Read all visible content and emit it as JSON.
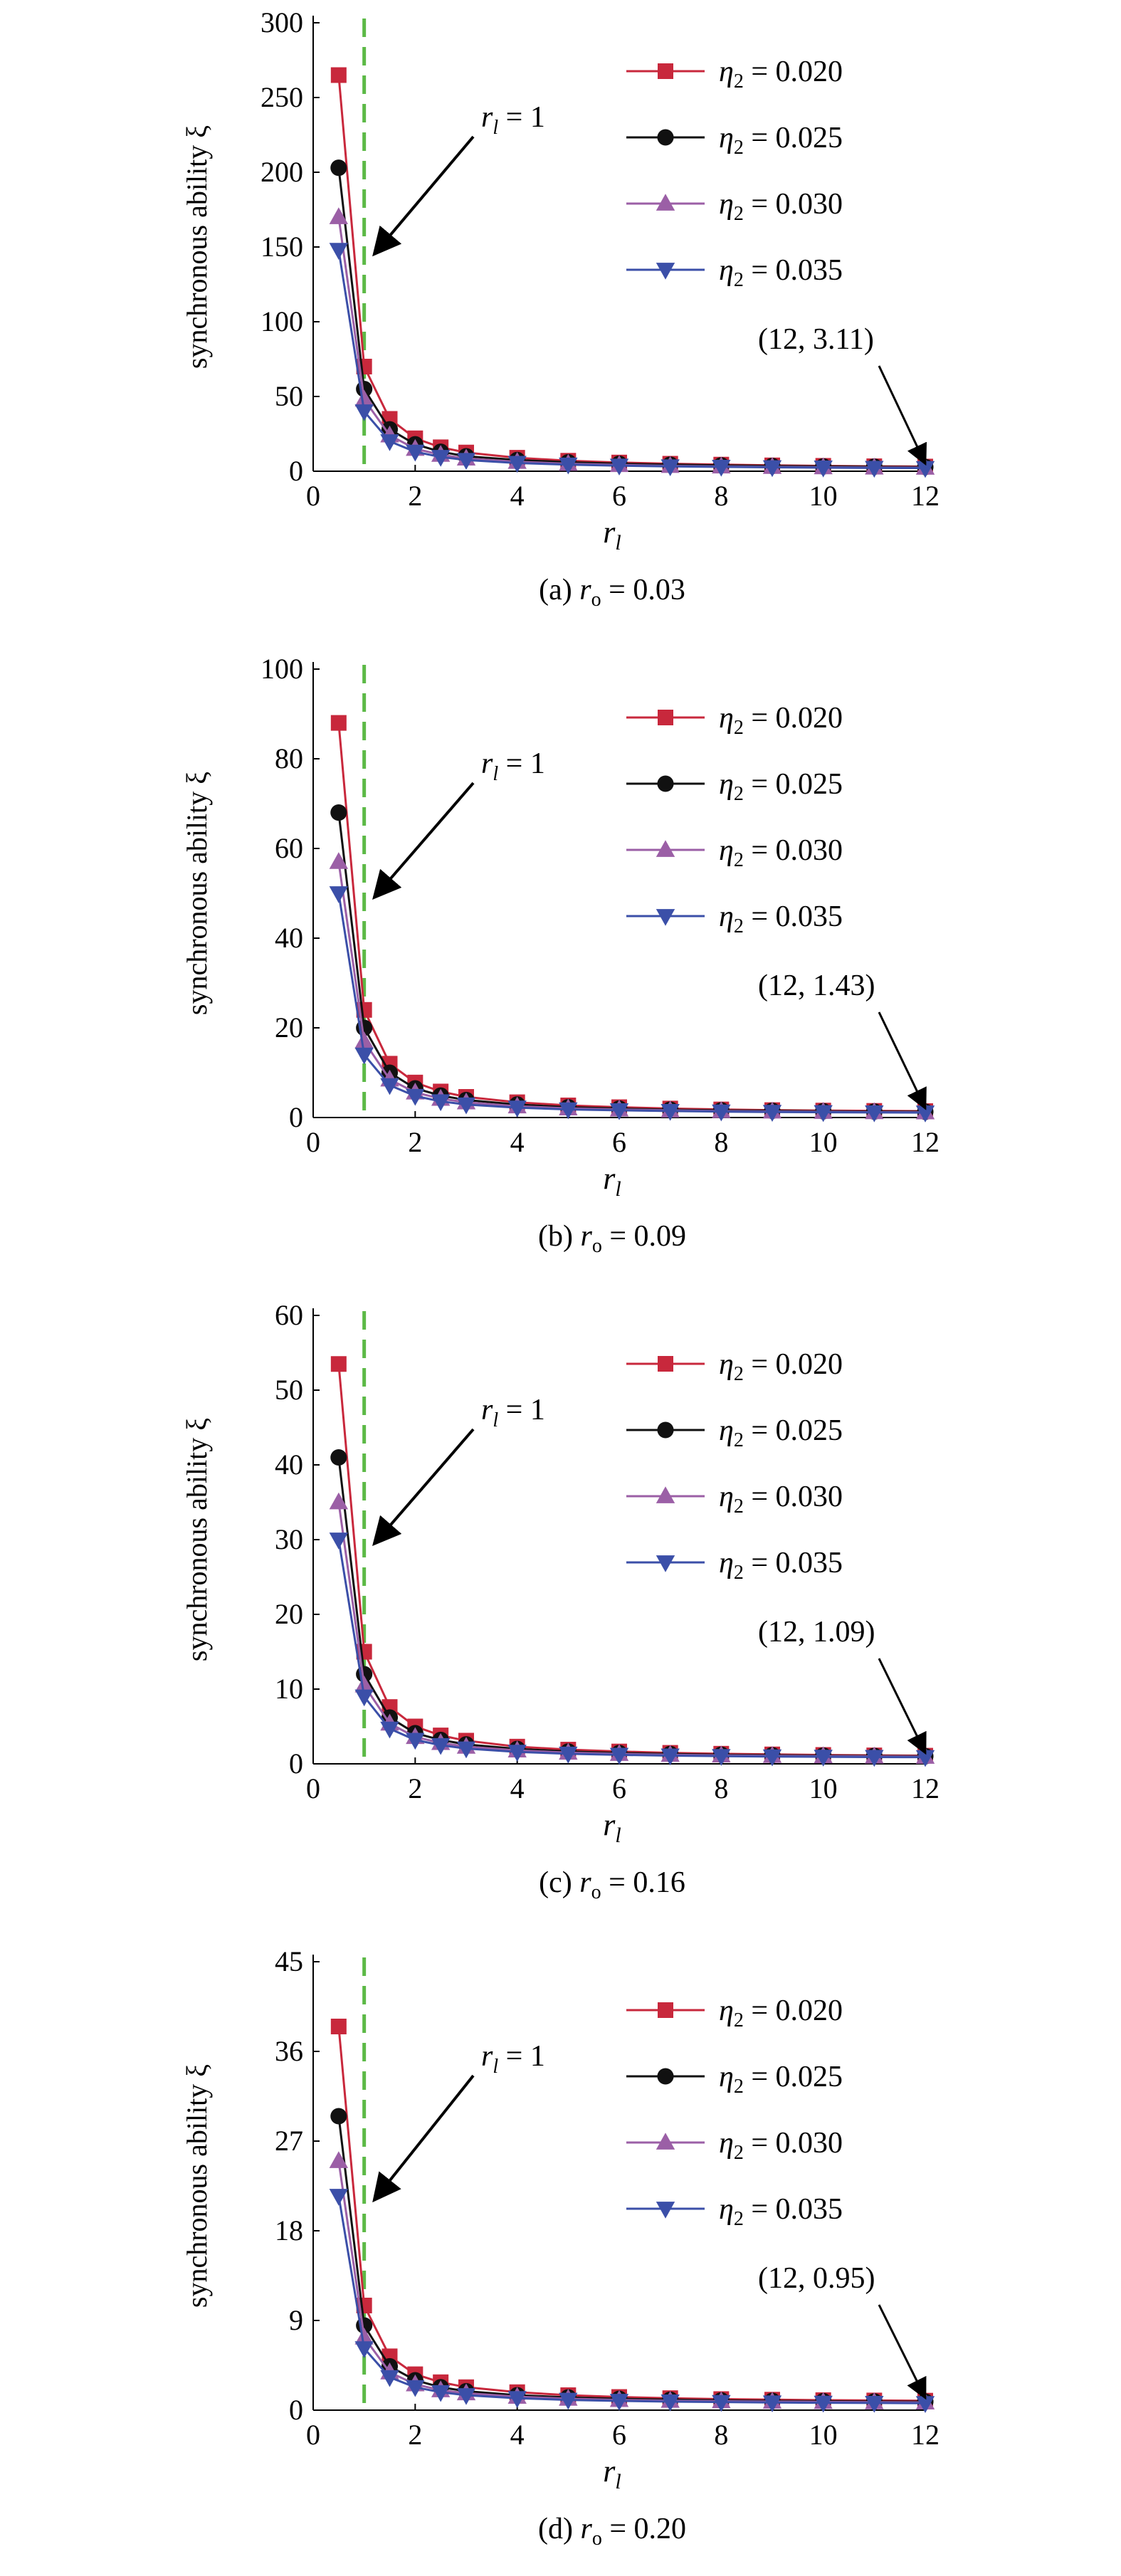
{
  "colors": {
    "series": [
      "#c8283c",
      "#111111",
      "#9b5fa6",
      "#3b4fa8"
    ],
    "refline": "#5cb946",
    "axis": "#000000"
  },
  "legend": {
    "symbol": "η",
    "subscript": "2",
    "equals": "=",
    "markers": [
      "square",
      "circle",
      "triangle-up",
      "triangle-down"
    ]
  },
  "common": {
    "ylabel": "synchronous ability ξ",
    "xlabel_main": "r",
    "xlabel_sub": "l",
    "xlim": [
      0,
      12
    ],
    "xticks": [
      0,
      2,
      4,
      6,
      8,
      10,
      12
    ],
    "refline_x": 1,
    "arrow_label_main": "r",
    "arrow_label_sub": "l",
    "arrow_label_rest": "= 1"
  },
  "chart_data": [
    {
      "type": "line",
      "caption_prefix": "(a)",
      "caption_var": "r",
      "caption_sub": "o",
      "caption_value": "= 0.03",
      "ylim": [
        0,
        300
      ],
      "yticks": [
        0,
        50,
        100,
        150,
        200,
        250,
        300
      ],
      "end_label": "(12, 3.11)",
      "end_point": [
        12,
        3.11
      ],
      "series": [
        {
          "name": "0.020",
          "x": [
            0.5,
            1,
            1.5,
            2,
            2.5,
            3,
            4,
            5,
            6,
            7,
            8,
            9,
            10,
            11,
            12
          ],
          "values": [
            265,
            70,
            35,
            22,
            16,
            12.5,
            9,
            7,
            5.8,
            5,
            4.4,
            3.9,
            3.6,
            3.3,
            3.11
          ]
        },
        {
          "name": "0.025",
          "x": [
            0.5,
            1,
            1.5,
            2,
            2.5,
            3,
            4,
            5,
            6,
            7,
            8,
            9,
            10,
            11,
            12
          ],
          "values": [
            203,
            55,
            28,
            18,
            13,
            10,
            7.5,
            6,
            5,
            4.4,
            3.9,
            3.5,
            3.2,
            3,
            2.8
          ]
        },
        {
          "name": "0.030",
          "x": [
            0.5,
            1,
            1.5,
            2,
            2.5,
            3,
            4,
            5,
            6,
            7,
            8,
            9,
            10,
            11,
            12
          ],
          "values": [
            170,
            48,
            24,
            15,
            11,
            8.5,
            6.3,
            5,
            4.2,
            3.6,
            3.2,
            2.9,
            2.7,
            2.5,
            2.4
          ]
        },
        {
          "name": "0.035",
          "x": [
            0.5,
            1,
            1.5,
            2,
            2.5,
            3,
            4,
            5,
            6,
            7,
            8,
            9,
            10,
            11,
            12
          ],
          "values": [
            148,
            40,
            20,
            13,
            9.5,
            7.5,
            5.5,
            4.4,
            3.7,
            3.2,
            2.9,
            2.6,
            2.4,
            2.2,
            2.1
          ]
        }
      ]
    },
    {
      "type": "line",
      "caption_prefix": "(b)",
      "caption_var": "r",
      "caption_sub": "o",
      "caption_value": "= 0.09",
      "ylim": [
        0,
        100
      ],
      "yticks": [
        0,
        20,
        40,
        60,
        80,
        100
      ],
      "end_label": "(12, 1.43)",
      "end_point": [
        12,
        1.43
      ],
      "series": [
        {
          "name": "0.020",
          "x": [
            0.5,
            1,
            1.5,
            2,
            2.5,
            3,
            4,
            5,
            6,
            7,
            8,
            9,
            10,
            11,
            12
          ],
          "values": [
            88,
            24,
            12,
            7.8,
            5.8,
            4.6,
            3.4,
            2.7,
            2.3,
            2,
            1.8,
            1.65,
            1.55,
            1.48,
            1.43
          ]
        },
        {
          "name": "0.025",
          "x": [
            0.5,
            1,
            1.5,
            2,
            2.5,
            3,
            4,
            5,
            6,
            7,
            8,
            9,
            10,
            11,
            12
          ],
          "values": [
            68,
            20,
            10,
            6.5,
            4.9,
            3.9,
            2.9,
            2.3,
            2,
            1.75,
            1.6,
            1.5,
            1.4,
            1.33,
            1.28
          ]
        },
        {
          "name": "0.030",
          "x": [
            0.5,
            1,
            1.5,
            2,
            2.5,
            3,
            4,
            5,
            6,
            7,
            8,
            9,
            10,
            11,
            12
          ],
          "values": [
            57,
            17,
            8.5,
            5.6,
            4.2,
            3.4,
            2.5,
            2.05,
            1.8,
            1.6,
            1.45,
            1.35,
            1.28,
            1.22,
            1.18
          ]
        },
        {
          "name": "0.035",
          "x": [
            0.5,
            1,
            1.5,
            2,
            2.5,
            3,
            4,
            5,
            6,
            7,
            8,
            9,
            10,
            11,
            12
          ],
          "values": [
            50,
            14,
            7.2,
            4.8,
            3.6,
            2.9,
            2.2,
            1.8,
            1.6,
            1.45,
            1.32,
            1.24,
            1.18,
            1.13,
            1.1
          ]
        }
      ]
    },
    {
      "type": "line",
      "caption_prefix": "(c)",
      "caption_var": "r",
      "caption_sub": "o",
      "caption_value": "= 0.16",
      "ylim": [
        0,
        60
      ],
      "yticks": [
        0,
        10,
        20,
        30,
        40,
        50,
        60
      ],
      "end_label": "(12, 1.09)",
      "end_point": [
        12,
        1.09
      ],
      "series": [
        {
          "name": "0.020",
          "x": [
            0.5,
            1,
            1.5,
            2,
            2.5,
            3,
            4,
            5,
            6,
            7,
            8,
            9,
            10,
            11,
            12
          ],
          "values": [
            53.5,
            15,
            7.6,
            5,
            3.8,
            3.1,
            2.3,
            1.9,
            1.65,
            1.47,
            1.35,
            1.26,
            1.19,
            1.13,
            1.09
          ]
        },
        {
          "name": "0.025",
          "x": [
            0.5,
            1,
            1.5,
            2,
            2.5,
            3,
            4,
            5,
            6,
            7,
            8,
            9,
            10,
            11,
            12
          ],
          "values": [
            41,
            12,
            6.2,
            4.1,
            3.2,
            2.6,
            2,
            1.65,
            1.45,
            1.32,
            1.22,
            1.15,
            1.1,
            1.05,
            1.02
          ]
        },
        {
          "name": "0.030",
          "x": [
            0.5,
            1,
            1.5,
            2,
            2.5,
            3,
            4,
            5,
            6,
            7,
            8,
            9,
            10,
            11,
            12
          ],
          "values": [
            35,
            10.5,
            5.4,
            3.6,
            2.8,
            2.3,
            1.8,
            1.5,
            1.33,
            1.22,
            1.13,
            1.07,
            1.03,
            0.99,
            0.96
          ]
        },
        {
          "name": "0.035",
          "x": [
            0.5,
            1,
            1.5,
            2,
            2.5,
            3,
            4,
            5,
            6,
            7,
            8,
            9,
            10,
            11,
            12
          ],
          "values": [
            30,
            9,
            4.7,
            3.2,
            2.5,
            2.05,
            1.6,
            1.35,
            1.2,
            1.1,
            1.03,
            0.98,
            0.94,
            0.91,
            0.89
          ]
        }
      ]
    },
    {
      "type": "line",
      "caption_prefix": "(d)",
      "caption_var": "r",
      "caption_sub": "o",
      "caption_value": "= 0.20",
      "ylim": [
        0,
        45
      ],
      "yticks": [
        0,
        9,
        18,
        27,
        36,
        45
      ],
      "end_label": "(12, 0.95)",
      "end_point": [
        12,
        0.95
      ],
      "series": [
        {
          "name": "0.020",
          "x": [
            0.5,
            1,
            1.5,
            2,
            2.5,
            3,
            4,
            5,
            6,
            7,
            8,
            9,
            10,
            11,
            12
          ],
          "values": [
            38.5,
            10.5,
            5.4,
            3.6,
            2.8,
            2.3,
            1.8,
            1.5,
            1.32,
            1.2,
            1.11,
            1.05,
            1.0,
            0.97,
            0.95
          ]
        },
        {
          "name": "0.025",
          "x": [
            0.5,
            1,
            1.5,
            2,
            2.5,
            3,
            4,
            5,
            6,
            7,
            8,
            9,
            10,
            11,
            12
          ],
          "values": [
            29.5,
            8.5,
            4.4,
            3,
            2.3,
            1.9,
            1.5,
            1.28,
            1.14,
            1.05,
            0.98,
            0.93,
            0.9,
            0.87,
            0.85
          ]
        },
        {
          "name": "0.030",
          "x": [
            0.5,
            1,
            1.5,
            2,
            2.5,
            3,
            4,
            5,
            6,
            7,
            8,
            9,
            10,
            11,
            12
          ],
          "values": [
            25,
            7.3,
            3.8,
            2.6,
            2,
            1.7,
            1.35,
            1.15,
            1.03,
            0.95,
            0.9,
            0.86,
            0.83,
            0.8,
            0.78
          ]
        },
        {
          "name": "0.035",
          "x": [
            0.5,
            1,
            1.5,
            2,
            2.5,
            3,
            4,
            5,
            6,
            7,
            8,
            9,
            10,
            11,
            12
          ],
          "values": [
            21.5,
            6.2,
            3.3,
            2.3,
            1.8,
            1.5,
            1.2,
            1.03,
            0.93,
            0.86,
            0.81,
            0.77,
            0.74,
            0.72,
            0.7
          ]
        }
      ]
    }
  ]
}
